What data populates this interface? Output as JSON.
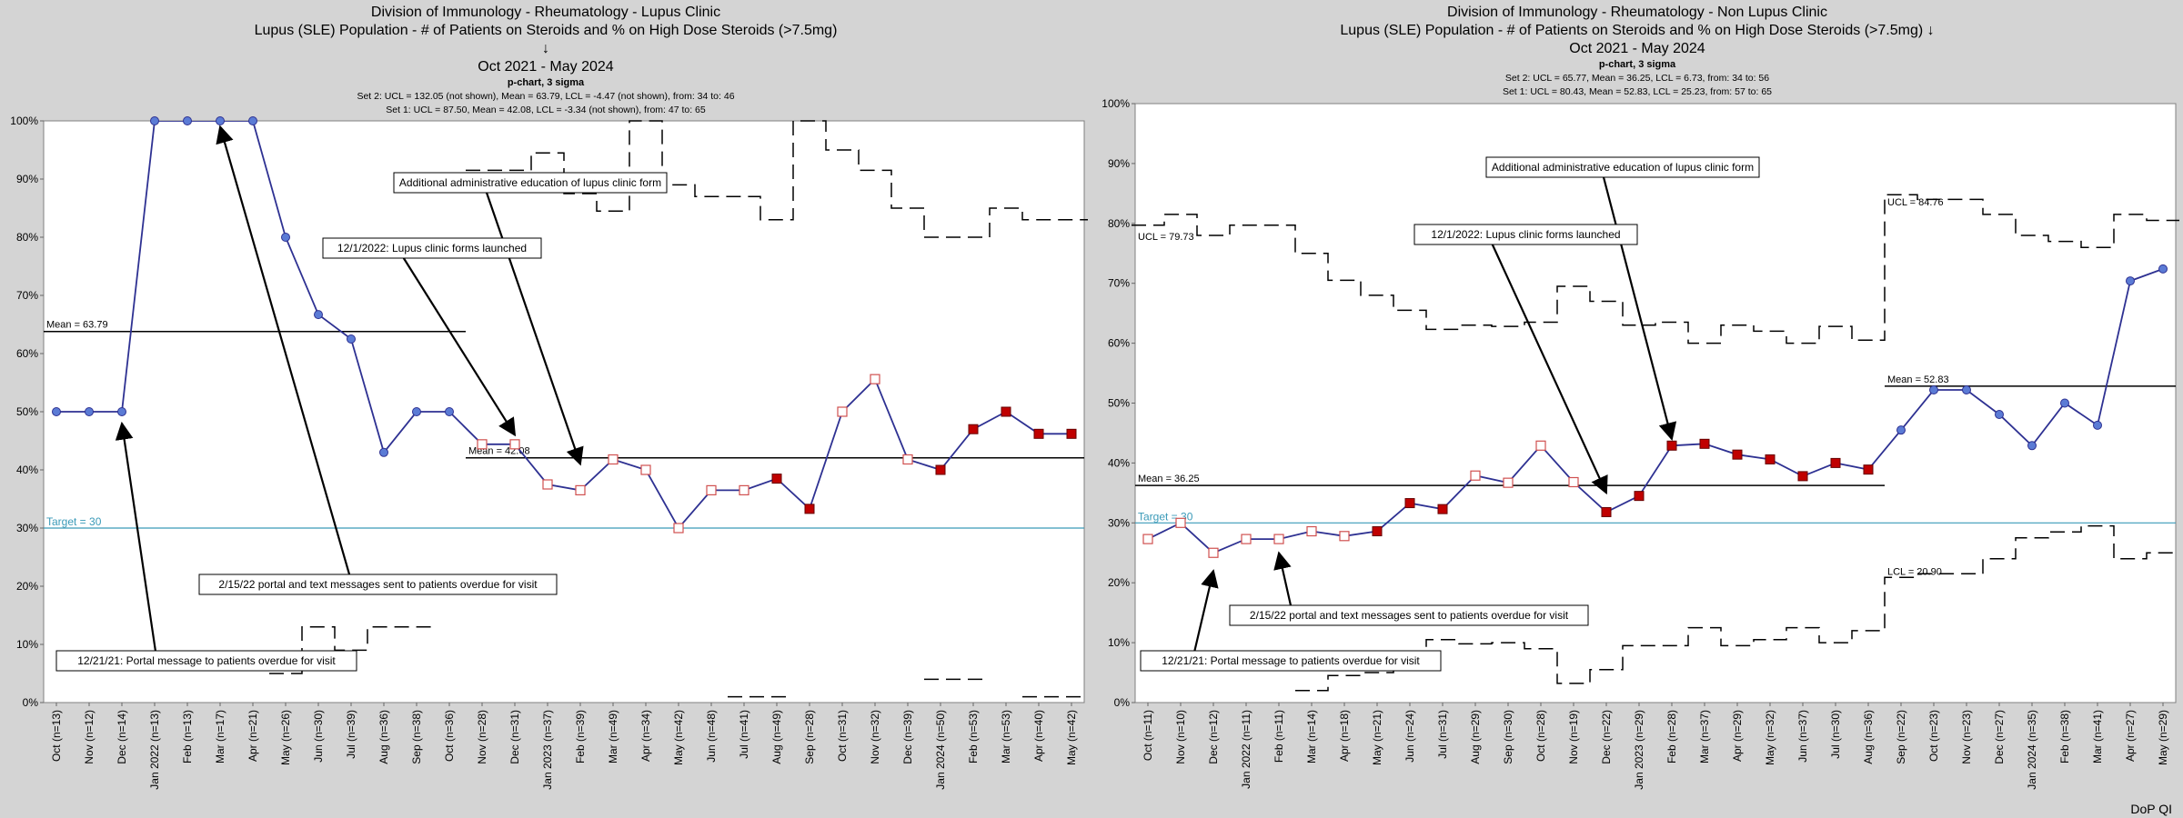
{
  "footer": "DoP QI",
  "chart_data": [
    {
      "type": "line",
      "chart_kind": "p-chart, 3 sigma",
      "title_lines": [
        "Division of Immunology - Rheumatology - Lupus Clinic",
        "Lupus (SLE) Population - # of Patients on Steroids and % on High Dose Steroids (>7.5mg)",
        "↓",
        "Oct 2021 - May 2024"
      ],
      "subtitle": "p-chart, 3 sigma",
      "set_notes": [
        "Set 2: UCL = 132.05 (not shown), Mean = 63.79, LCL = -4.47 (not shown), from: 34 to: 46",
        "Set 1: UCL = 87.50, Mean = 42.08, LCL = -3.34 (not shown), from: 47 to: 65"
      ],
      "ylim": [
        0,
        100
      ],
      "yticks": [
        "0%",
        "10%",
        "20%",
        "30%",
        "40%",
        "50%",
        "60%",
        "70%",
        "80%",
        "90%",
        "100%"
      ],
      "categories": [
        "Oct (n=13)",
        "Nov (n=12)",
        "Dec (n=14)",
        "Jan 2022 (n=13)",
        "Feb (n=13)",
        "Mar (n=17)",
        "Apr (n=21)",
        "May (n=26)",
        "Jun (n=30)",
        "Jul (n=39)",
        "Aug (n=36)",
        "Sep (n=38)",
        "Oct (n=36)",
        "Nov (n=28)",
        "Dec (n=31)",
        "Jan 2023 (n=37)",
        "Feb (n=39)",
        "Mar (n=49)",
        "Apr (n=34)",
        "May (n=42)",
        "Jun (n=48)",
        "Jul (n=41)",
        "Aug (n=49)",
        "Sep (n=28)",
        "Oct (n=31)",
        "Nov (n=32)",
        "Dec (n=39)",
        "Jan 2024 (n=50)",
        "Feb (n=53)",
        "Mar (n=53)",
        "Apr (n=40)",
        "May (n=42)"
      ],
      "values": [
        50,
        50,
        50,
        100,
        100,
        100,
        100,
        80,
        66.7,
        62.5,
        43,
        50,
        50,
        44.4,
        44.4,
        37.5,
        36.5,
        41.8,
        40,
        30,
        36.5,
        36.5,
        38.5,
        33.3,
        50,
        55.6,
        41.8,
        40,
        47,
        50,
        46.2,
        46.2
      ],
      "point_styles": [
        "circle",
        "circle",
        "circle",
        "circle",
        "circle",
        "circle",
        "circle",
        "circle",
        "circle",
        "circle",
        "circle",
        "circle",
        "circle",
        "square-open",
        "square-open",
        "square-open",
        "square-open",
        "square-open",
        "square-open",
        "square-open",
        "square-open",
        "square-open",
        "square-filled",
        "square-filled",
        "square-open",
        "square-open",
        "square-open",
        "square-filled",
        "square-filled",
        "square-filled",
        "square-filled",
        "square-filled"
      ],
      "mean_lines": [
        {
          "label": "Mean = 63.79",
          "value": 63.79,
          "from": 0,
          "to": 12
        },
        {
          "label": "Mean = 42.08",
          "value": 42.08,
          "from": 13,
          "to": 31
        }
      ],
      "target": {
        "label": "Target = 30",
        "value": 30
      },
      "ucl": [
        null,
        null,
        null,
        null,
        null,
        null,
        null,
        null,
        null,
        null,
        null,
        null,
        null,
        91.5,
        91.5,
        94.5,
        87.5,
        84.5,
        100,
        89,
        87,
        87,
        83,
        100,
        95,
        91.5,
        85,
        80,
        80,
        85,
        83,
        83
      ],
      "lcl": [
        null,
        null,
        null,
        null,
        null,
        null,
        null,
        5,
        13,
        9,
        13,
        13,
        null,
        null,
        null,
        null,
        null,
        null,
        null,
        null,
        null,
        1,
        1,
        null,
        null,
        null,
        null,
        4,
        4,
        null,
        1,
        1
      ],
      "annotations": [
        {
          "text": "Additional administrative education of lupus clinic form",
          "target_index": 16,
          "target_value": 41
        },
        {
          "text": "12/1/2022: Lupus clinic forms launched",
          "target_index": 14,
          "target_value": 46
        },
        {
          "text": "2/15/22 portal and text messages sent to patients overdue for visit",
          "target_index": 5,
          "target_value": 99
        },
        {
          "text": "12/21/21: Portal message to patients overdue for visit",
          "target_index": 2,
          "target_value": 48
        }
      ]
    },
    {
      "type": "line",
      "chart_kind": "p-chart, 3 sigma",
      "title_lines": [
        "Division of Immunology - Rheumatology - Non Lupus Clinic",
        "Lupus (SLE) Population - # of Patients on Steroids and % on High Dose Steroids (>7.5mg) ↓",
        "Oct 2021 - May 2024"
      ],
      "subtitle": "p-chart, 3 sigma",
      "set_notes": [
        "Set 2: UCL = 65.77, Mean = 36.25, LCL = 6.73, from: 34 to: 56",
        "Set 1: UCL = 80.43, Mean = 52.83, LCL = 25.23, from: 57 to: 65"
      ],
      "ylim": [
        0,
        100
      ],
      "yticks": [
        "0%",
        "10%",
        "20%",
        "30%",
        "40%",
        "50%",
        "60%",
        "70%",
        "80%",
        "90%",
        "100%"
      ],
      "categories": [
        "Oct (n=11)",
        "Nov (n=10)",
        "Dec (n=12)",
        "Jan 2022 (n=11)",
        "Feb (n=11)",
        "Mar (n=14)",
        "Apr (n=18)",
        "May (n=21)",
        "Jun (n=24)",
        "Jul (n=31)",
        "Aug (n=29)",
        "Sep (n=30)",
        "Oct (n=28)",
        "Nov (n=19)",
        "Dec (n=22)",
        "Jan 2023 (n=29)",
        "Feb (n=28)",
        "Mar (n=37)",
        "Apr (n=29)",
        "May (n=32)",
        "Jun (n=37)",
        "Jul (n=30)",
        "Aug (n=36)",
        "Sep (n=22)",
        "Oct (n=23)",
        "Nov (n=23)",
        "Dec (n=27)",
        "Jan 2024 (n=35)",
        "Feb (n=38)",
        "Mar (n=41)",
        "Apr (n=27)",
        "May (n=29)"
      ],
      "values": [
        27.3,
        30,
        25,
        27.3,
        27.3,
        28.6,
        27.8,
        28.6,
        33.3,
        32.3,
        37.9,
        36.7,
        42.9,
        36.8,
        31.8,
        34.5,
        42.9,
        43.2,
        41.4,
        40.6,
        37.8,
        40,
        38.9,
        45.5,
        52.2,
        52.2,
        48.1,
        42.9,
        50,
        46.3,
        70.4,
        72.4
      ],
      "point_styles": [
        "square-open",
        "square-open",
        "square-open",
        "square-open",
        "square-open",
        "square-open",
        "square-open",
        "square-filled",
        "square-filled",
        "square-filled",
        "square-open",
        "square-open",
        "square-open",
        "square-open",
        "square-filled",
        "square-filled",
        "square-filled",
        "square-filled",
        "square-filled",
        "square-filled",
        "square-filled",
        "square-filled",
        "square-filled",
        "circle",
        "circle",
        "circle",
        "circle",
        "circle",
        "circle",
        "circle",
        "circle",
        "circle"
      ],
      "mean_lines": [
        {
          "label": "Mean = 36.25",
          "value": 36.25,
          "from": 0,
          "to": 22
        },
        {
          "label": "Mean = 52.83",
          "value": 52.83,
          "from": 23,
          "to": 31
        }
      ],
      "ucl_label": "UCL = 79.73",
      "ucl_label_2": "UCL = 84.76",
      "lcl_label": "LCL = 20.90",
      "target": {
        "label": "Target = 30",
        "value": 30
      },
      "ucl": [
        79.7,
        81.5,
        78,
        79.7,
        79.7,
        75,
        70.5,
        68,
        65.5,
        62.3,
        63,
        62.8,
        63.5,
        69.5,
        67,
        63,
        63.5,
        60,
        63,
        62,
        60,
        62.8,
        60.5,
        84.8,
        84,
        84,
        81.5,
        78,
        77,
        76,
        81.5,
        80.5
      ],
      "lcl": [
        null,
        null,
        null,
        null,
        null,
        2,
        4.5,
        5,
        7.5,
        10.5,
        9.8,
        10,
        9,
        3.2,
        5.5,
        9.5,
        9.5,
        12.5,
        9.5,
        10.5,
        12.5,
        10,
        12,
        20.9,
        21.5,
        21.5,
        24,
        27.5,
        28.5,
        29.5,
        24,
        25
      ],
      "annotations": [
        {
          "text": "Additional administrative education of lupus clinic form",
          "target_index": 16,
          "target_value": 44
        },
        {
          "text": "12/1/2022: Lupus clinic forms launched",
          "target_index": 14,
          "target_value": 35
        },
        {
          "text": "2/15/22 portal and text messages sent to patients overdue for visit",
          "target_index": 4,
          "target_value": 25
        },
        {
          "text": "12/21/21: Portal message to patients overdue for visit",
          "target_index": 2,
          "target_value": 22
        }
      ]
    }
  ],
  "colors": {
    "background": "#d4d4d4",
    "plot_area": "#ffffff",
    "data_line": "#2e3192",
    "circle_fill": "#5b7bd5",
    "square_filled": "#c00000",
    "square_open_stroke": "#d0504f",
    "target_line": "#3a9ab8",
    "mean_line": "#000000",
    "control_limit": "#000000"
  }
}
